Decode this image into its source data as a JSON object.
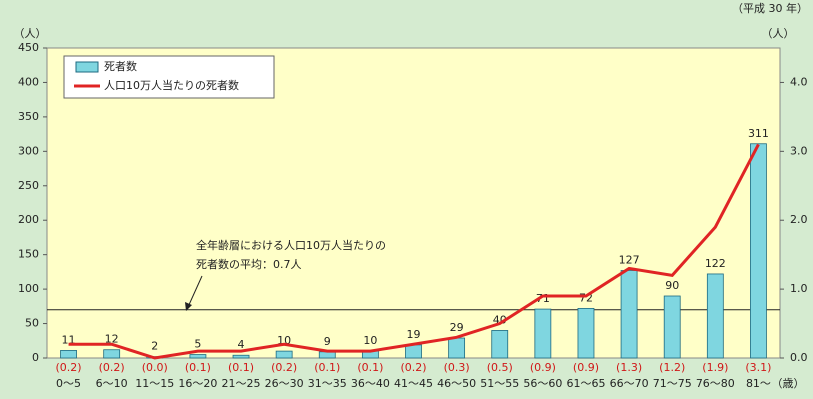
{
  "chart_data": {
    "type": "bar",
    "title_note": "（平成 30 年）",
    "y_unit": "（人）",
    "y2_unit": "（人）",
    "x_unit": "（歳）",
    "categories": [
      "0～5",
      "6～10",
      "11～15",
      "16～20",
      "21～25",
      "26～30",
      "31～35",
      "36～40",
      "41～45",
      "46～50",
      "51～55",
      "56～60",
      "61～65",
      "66～70",
      "71～75",
      "76～80",
      "81～"
    ],
    "series": [
      {
        "name": "死者数",
        "type": "bar",
        "color": "#7fd6e0",
        "values": [
          11,
          12,
          2,
          5,
          4,
          10,
          9,
          10,
          19,
          29,
          40,
          71,
          72,
          127,
          90,
          122,
          311
        ]
      },
      {
        "name": "人口10万人当たりの死者数",
        "type": "line",
        "axis": "y2",
        "color": "#e02424",
        "values": [
          0.2,
          0.2,
          0.0,
          0.1,
          0.1,
          0.2,
          0.1,
          0.1,
          0.2,
          0.3,
          0.5,
          0.9,
          0.9,
          1.3,
          1.2,
          1.9,
          3.1
        ],
        "value_labels": [
          "(0.2)",
          "(0.2)",
          "(0.0)",
          "(0.1)",
          "(0.1)",
          "(0.2)",
          "(0.1)",
          "(0.1)",
          "(0.2)",
          "(0.3)",
          "(0.5)",
          "(0.9)",
          "(0.9)",
          "(1.3)",
          "(1.2)",
          "(1.9)",
          "(3.1)"
        ]
      }
    ],
    "ylim": [
      0,
      450
    ],
    "yticks": [
      0,
      50,
      100,
      150,
      200,
      250,
      300,
      350,
      400,
      450
    ],
    "y2lim": [
      0,
      4.5
    ],
    "y2ticks": [
      {
        "value": 0,
        "label": "0.0"
      },
      {
        "value": 1,
        "label": "1.0"
      },
      {
        "value": 2,
        "label": "2.0"
      },
      {
        "value": 3,
        "label": "3.0"
      },
      {
        "value": 4,
        "label": "4.0"
      }
    ],
    "average": 0.7,
    "annotation": [
      "全年齢層における人口10万人当たりの",
      "死者数の平均：0.7人"
    ]
  }
}
